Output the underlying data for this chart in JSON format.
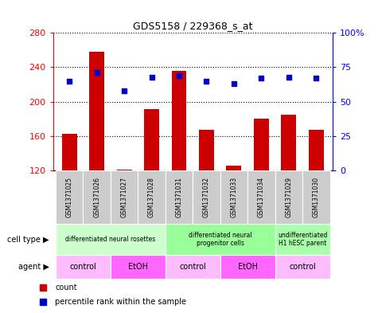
{
  "title": "GDS5158 / 229368_s_at",
  "samples": [
    "GSM1371025",
    "GSM1371026",
    "GSM1371027",
    "GSM1371028",
    "GSM1371031",
    "GSM1371032",
    "GSM1371033",
    "GSM1371034",
    "GSM1371029",
    "GSM1371030"
  ],
  "counts": [
    163,
    258,
    121,
    191,
    236,
    167,
    126,
    180,
    185,
    167
  ],
  "percentile_ranks": [
    65,
    71,
    58,
    68,
    69,
    65,
    63,
    67,
    68,
    67
  ],
  "ylim_left": [
    120,
    280
  ],
  "ylim_right": [
    0,
    100
  ],
  "y_ticks_left": [
    120,
    160,
    200,
    240,
    280
  ],
  "y_ticks_right": [
    0,
    25,
    50,
    75,
    100
  ],
  "cell_type_groups": [
    {
      "label": "differentiated neural rosettes",
      "start": 0,
      "end": 4,
      "color": "#ccffcc"
    },
    {
      "label": "differentiated neural\nprogenitor cells",
      "start": 4,
      "end": 8,
      "color": "#99ff99"
    },
    {
      "label": "undifferentiated\nH1 hESC parent",
      "start": 8,
      "end": 10,
      "color": "#aaffaa"
    }
  ],
  "agent_groups": [
    {
      "label": "control",
      "start": 0,
      "end": 2,
      "color": "#ffbbff"
    },
    {
      "label": "EtOH",
      "start": 2,
      "end": 4,
      "color": "#ff66ff"
    },
    {
      "label": "control",
      "start": 4,
      "end": 6,
      "color": "#ffbbff"
    },
    {
      "label": "EtOH",
      "start": 6,
      "end": 8,
      "color": "#ff66ff"
    },
    {
      "label": "control",
      "start": 8,
      "end": 10,
      "color": "#ffbbff"
    }
  ],
  "bar_color": "#cc0000",
  "dot_color": "#0000cc",
  "sample_bg": "#cccccc",
  "bg_color": "#ffffff"
}
